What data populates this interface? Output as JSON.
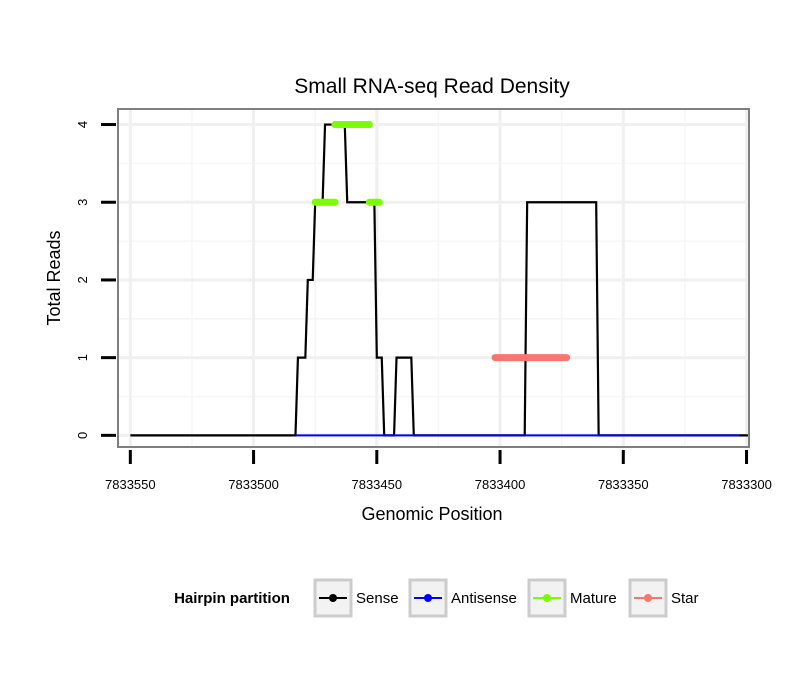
{
  "chart_data": {
    "type": "line",
    "title": "Small RNA-seq Read Density",
    "xlabel": "Genomic Position",
    "ylabel": "Total Reads",
    "x_reversed": true,
    "xlim": [
      7833555,
      7833299
    ],
    "ylim": [
      -0.15,
      4.2
    ],
    "x_ticks": [
      7833550,
      7833500,
      7833450,
      7833400,
      7833350,
      7833300
    ],
    "x_tick_labels": [
      "7833550",
      "7833500",
      "7833450",
      "7833400",
      "7833350",
      "7833300"
    ],
    "y_ticks": [
      0,
      1,
      2,
      3,
      4
    ],
    "y_tick_labels": [
      "0",
      "1",
      "2",
      "3",
      "4"
    ],
    "grid": true,
    "legend": {
      "title": "Hairpin partition",
      "position": "bottom",
      "entries": [
        "Sense",
        "Antisense",
        "Mature",
        "Star"
      ]
    },
    "series": [
      {
        "name": "Sense",
        "color": "#000000",
        "x": [
          7833550,
          7833483,
          7833482,
          7833479,
          7833478,
          7833476,
          7833475,
          7833472,
          7833471,
          7833463,
          7833462,
          7833451,
          7833450,
          7833448,
          7833447,
          7833443,
          7833442,
          7833436,
          7833435,
          7833390,
          7833389,
          7833361,
          7833360,
          7833331,
          7833330,
          7833304,
          7833303,
          7833299
        ],
        "y": [
          0,
          0,
          1,
          1,
          2,
          2,
          3,
          3,
          4,
          4,
          3,
          3,
          1,
          1,
          0,
          0,
          1,
          1,
          0,
          0,
          3,
          3,
          0,
          0,
          0,
          0,
          0,
          0
        ]
      },
      {
        "name": "Antisense",
        "color": "#0000ff",
        "x": [
          7833483,
          7833436,
          7833331,
          7833303
        ],
        "y": [
          0,
          0,
          0,
          0
        ]
      },
      {
        "name": "Mature",
        "color": "#7cfc00",
        "segments": [
          {
            "x": [
              7833475,
              7833467
            ],
            "y": 3
          },
          {
            "x": [
              7833467,
              7833453
            ],
            "y": 4
          },
          {
            "x": [
              7833453,
              7833449
            ],
            "y": 3
          }
        ]
      },
      {
        "name": "Star",
        "color": "#f8766d",
        "segments": [
          {
            "x": [
              7833402,
              7833373
            ],
            "y": 1
          }
        ]
      }
    ]
  }
}
